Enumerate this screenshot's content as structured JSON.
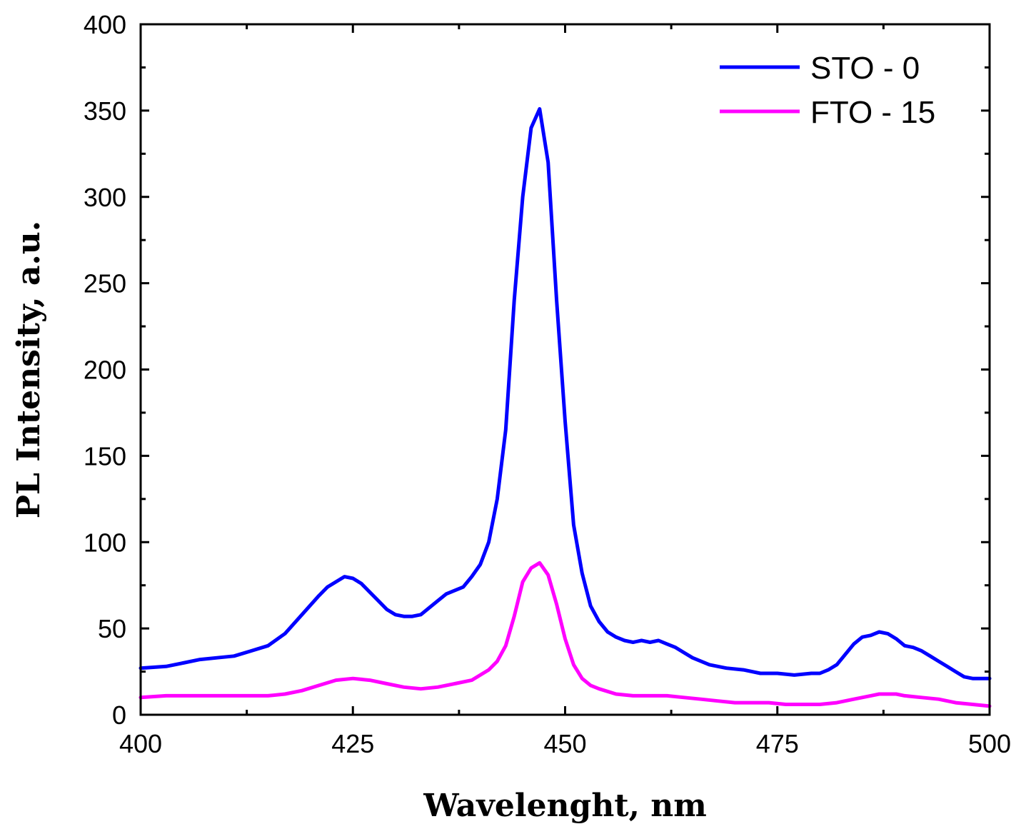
{
  "chart_data": {
    "type": "line",
    "title": "",
    "xlabel": "Wavelenght, nm",
    "ylabel": "PL Intensity, a.u.",
    "xlim": [
      400,
      500
    ],
    "ylim": [
      0,
      400
    ],
    "x_ticks": [
      400,
      425,
      450,
      475,
      500
    ],
    "x_tick_labels": [
      "400",
      "425",
      "450",
      "475",
      "500"
    ],
    "y_ticks": [
      0,
      50,
      100,
      150,
      200,
      250,
      300,
      350,
      400
    ],
    "y_tick_labels": [
      "0",
      "50",
      "100",
      "150",
      "200",
      "250",
      "300",
      "350",
      "400"
    ],
    "legend_position": "top-right",
    "grid": false,
    "series": [
      {
        "name": "STO - 0",
        "color": "#0000ff",
        "x": [
          400,
          403,
          405,
          407,
          409,
          411,
          413,
          415,
          417,
          419,
          421,
          422,
          423,
          424,
          425,
          426,
          427,
          428,
          429,
          430,
          431,
          432,
          433,
          434,
          435,
          436,
          437,
          438,
          439,
          440,
          441,
          442,
          443,
          444,
          445,
          446,
          447,
          448,
          449,
          450,
          451,
          452,
          453,
          454,
          455,
          456,
          457,
          458,
          459,
          460,
          461,
          462,
          463,
          464,
          465,
          467,
          469,
          471,
          473,
          475,
          477,
          479,
          480,
          481,
          482,
          483,
          484,
          485,
          486,
          487,
          488,
          489,
          490,
          491,
          492,
          493,
          494,
          495,
          496,
          497,
          498,
          499,
          500
        ],
        "values": [
          27,
          28,
          30,
          32,
          33,
          34,
          37,
          40,
          47,
          58,
          69,
          74,
          77,
          80,
          79,
          76,
          71,
          66,
          61,
          58,
          57,
          57,
          58,
          62,
          66,
          70,
          72,
          74,
          80,
          87,
          100,
          125,
          165,
          240,
          300,
          340,
          351,
          320,
          240,
          170,
          110,
          82,
          63,
          54,
          48,
          45,
          43,
          42,
          43,
          42,
          43,
          41,
          39,
          36,
          33,
          29,
          27,
          26,
          24,
          24,
          23,
          24,
          24,
          26,
          29,
          35,
          41,
          45,
          46,
          48,
          47,
          44,
          40,
          39,
          37,
          34,
          31,
          28,
          25,
          22,
          21,
          21,
          21
        ]
      },
      {
        "name": "FTO - 15",
        "color": "#ff00ff",
        "x": [
          400,
          403,
          405,
          407,
          409,
          411,
          413,
          415,
          417,
          419,
          421,
          423,
          425,
          427,
          429,
          431,
          433,
          435,
          437,
          439,
          440,
          441,
          442,
          443,
          444,
          445,
          446,
          447,
          448,
          449,
          450,
          451,
          452,
          453,
          454,
          456,
          458,
          460,
          462,
          464,
          466,
          468,
          470,
          472,
          474,
          476,
          478,
          480,
          482,
          484,
          486,
          487,
          488,
          489,
          490,
          492,
          494,
          496,
          498,
          500
        ],
        "values": [
          10,
          11,
          11,
          11,
          11,
          11,
          11,
          11,
          12,
          14,
          17,
          20,
          21,
          20,
          18,
          16,
          15,
          16,
          18,
          20,
          23,
          26,
          31,
          40,
          57,
          77,
          85,
          88,
          81,
          64,
          44,
          29,
          21,
          17,
          15,
          12,
          11,
          11,
          11,
          10,
          9,
          8,
          7,
          7,
          7,
          6,
          6,
          6,
          7,
          9,
          11,
          12,
          12,
          12,
          11,
          10,
          9,
          7,
          6,
          5
        ]
      }
    ]
  }
}
